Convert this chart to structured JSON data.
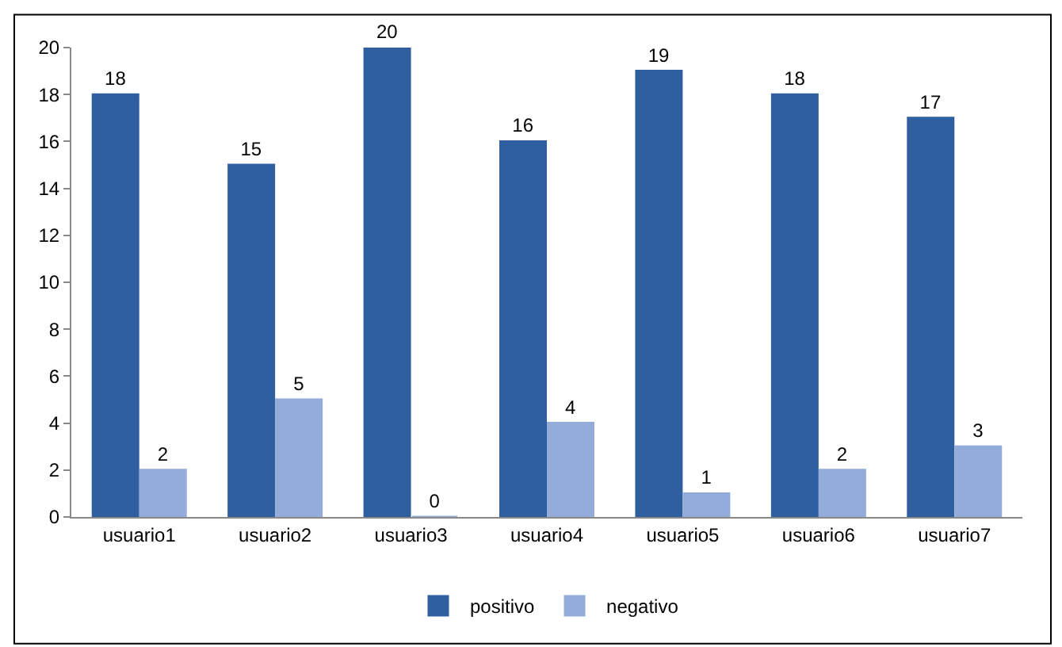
{
  "chart_data": {
    "type": "bar",
    "categories": [
      "usuario1",
      "usuario2",
      "usuario3",
      "usuario4",
      "usuario5",
      "usuario6",
      "usuario7"
    ],
    "series": [
      {
        "name": "positivo",
        "color": "#2f5f9f",
        "values": [
          18,
          15,
          20,
          16,
          19,
          18,
          17
        ]
      },
      {
        "name": "negativo",
        "color": "#93acd9",
        "values": [
          2,
          5,
          0,
          4,
          1,
          2,
          3
        ]
      }
    ],
    "ylim": [
      0,
      20
    ],
    "yticks": [
      0,
      2,
      4,
      6,
      8,
      10,
      12,
      14,
      16,
      18,
      20
    ],
    "data_labels": true,
    "legend": "bottom",
    "grid": false
  }
}
